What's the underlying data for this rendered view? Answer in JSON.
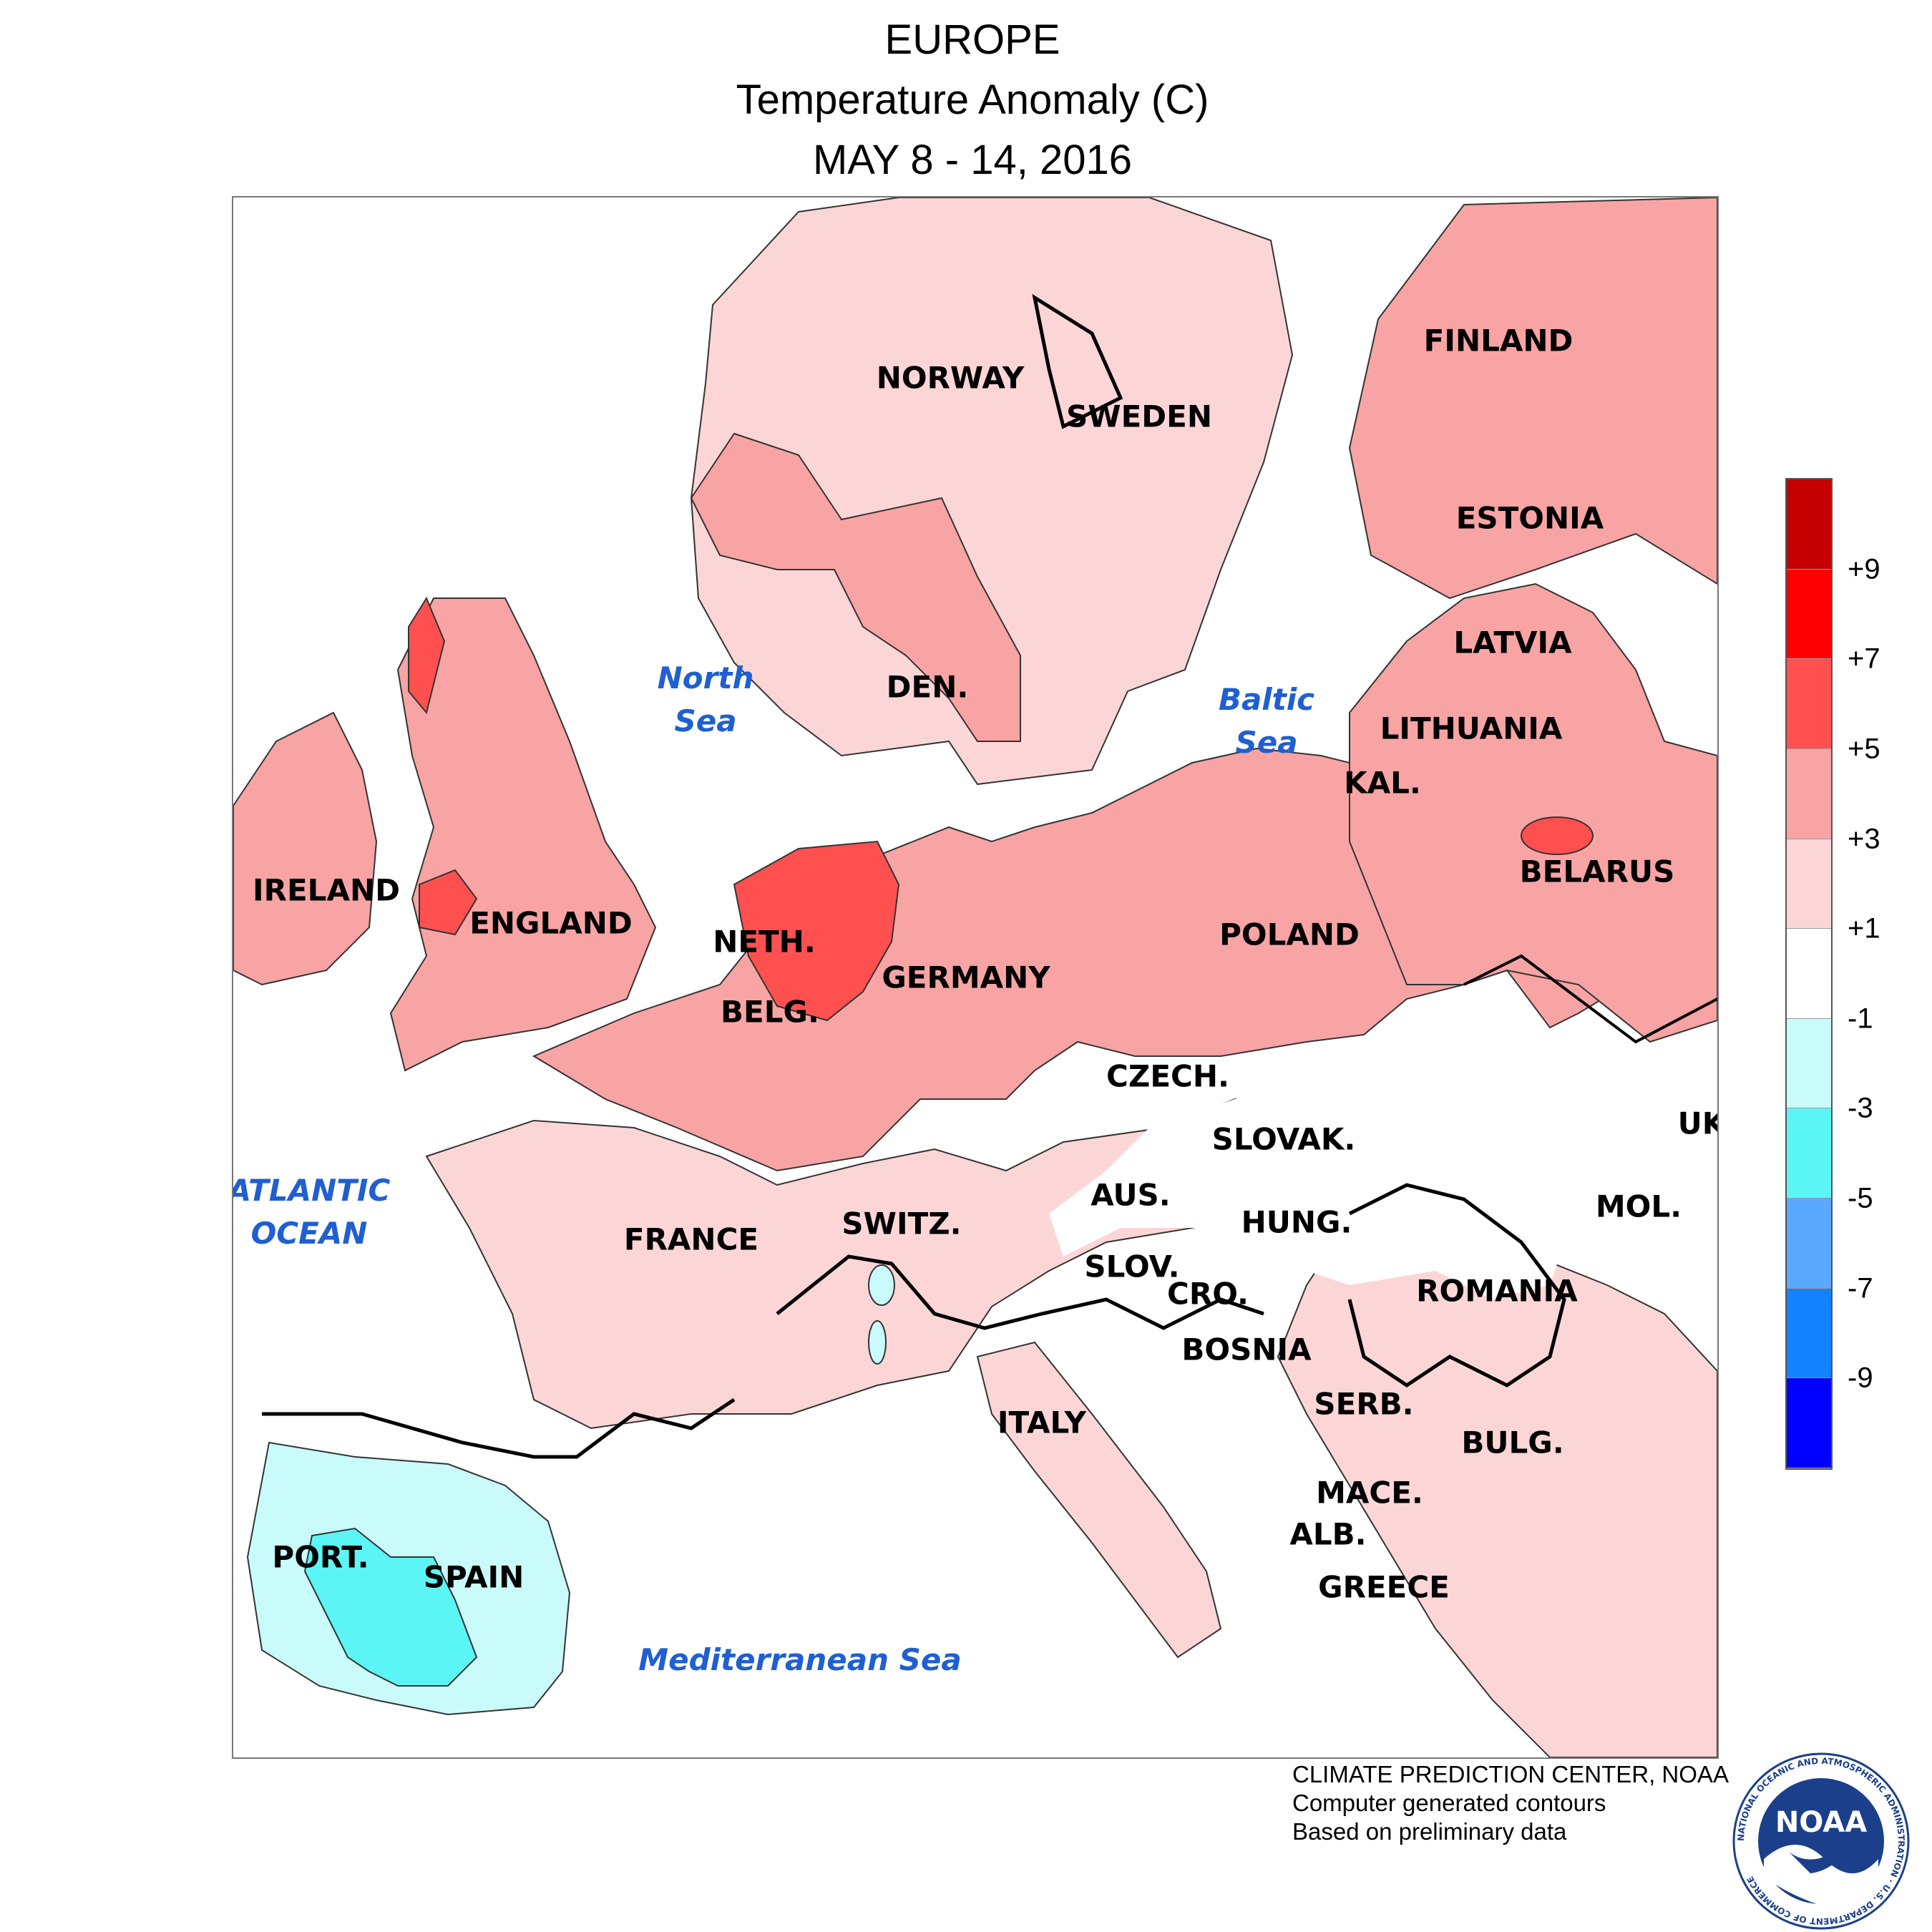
{
  "header": {
    "region": "EUROPE",
    "variable": "Temperature Anomaly (C)",
    "period": "MAY 8 - 14, 2016"
  },
  "colors": {
    "plus9": "#c40000",
    "plus7": "#ff0000",
    "plus5": "#ff5050",
    "plus3": "#f8a4a4",
    "plus1": "#fcd6d6",
    "neutral": "#ffffff",
    "minus1": "#c9fbfb",
    "minus3": "#5cf5f5",
    "minus5": "#5aa8ff",
    "minus7": "#1482ff",
    "minus9": "#0000ff",
    "water_label": "#1f5fd1"
  },
  "legend": {
    "ticks": [
      "+9",
      "+7",
      "+5",
      "+3",
      "+1",
      "-1",
      "-3",
      "-5",
      "-7",
      "-9"
    ]
  },
  "countries": {
    "norway": "NORWAY",
    "sweden": "SWEDEN",
    "finland": "FINLAND",
    "estonia": "ESTONIA",
    "latvia": "LATVIA",
    "lithuania": "LITHUANIA",
    "kaliningrad": "KAL.",
    "belarus": "BELARUS",
    "ireland": "IRELAND",
    "england": "ENGLAND",
    "denmark": "DEN.",
    "netherlands": "NETH.",
    "belgium": "BELG.",
    "germany": "GERMANY",
    "poland": "POLAND",
    "czech": "CZECH.",
    "slovakia": "SLOVAK.",
    "ukraine": "UK",
    "austria": "AUS.",
    "switzerland": "SWITZ.",
    "france": "FRANCE",
    "hungary": "HUNG.",
    "moldova": "MOL.",
    "slovenia": "SLOV.",
    "croatia": "CRO.",
    "romania": "ROMANIA",
    "bosnia": "BOSNIA",
    "serbia": "SERB.",
    "italy": "ITALY",
    "bulgaria": "BULG.",
    "macedonia": "MACE.",
    "albania": "ALB.",
    "greece": "GREECE",
    "portugal": "PORT.",
    "spain": "SPAIN"
  },
  "waters": {
    "north_sea": [
      "North",
      "Sea"
    ],
    "baltic_sea": [
      "Baltic",
      "Sea"
    ],
    "atlantic": [
      "ATLANTIC",
      "OCEAN"
    ],
    "mediterranean": "Mediterranean Sea"
  },
  "credits": {
    "line1": "CLIMATE PREDICTION CENTER, NOAA",
    "line2": "Computer generated contours",
    "line3": "Based on preliminary data"
  },
  "logo": {
    "text": "NOAA",
    "ring_text": "NATIONAL OCEANIC AND ATMOSPHERIC ADMINISTRATION · U.S. DEPARTMENT OF COMMERCE"
  }
}
